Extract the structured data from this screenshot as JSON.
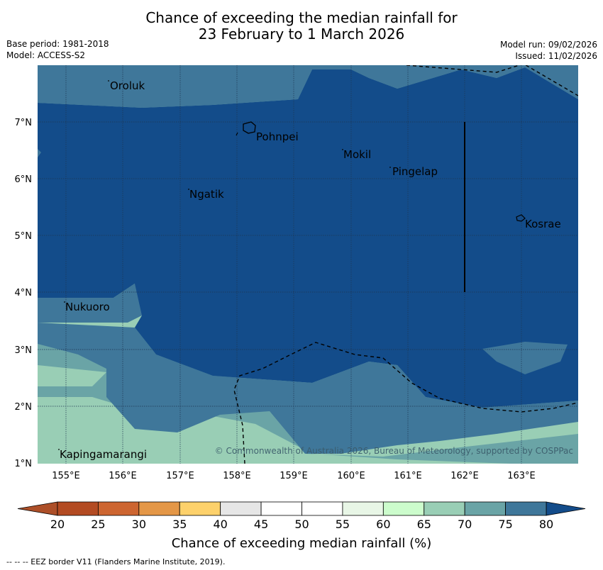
{
  "title": {
    "line1": "Chance of exceeding the median rainfall for",
    "line2": "23 February to 1 March 2026"
  },
  "meta_left": {
    "base_period": "Base period: 1981-2018",
    "model": "Model: ACCESS-S2"
  },
  "meta_right": {
    "model_run": "Model run: 09/02/2026",
    "issued": "Issued: 11/02/2026"
  },
  "places": {
    "oroluk": "Oroluk",
    "pohnpei": "Pohnpei",
    "mokil": "Mokil",
    "pingelap": "Pingelap",
    "ngatik": "Ngatik",
    "kosrae": "Kosrae",
    "nukuoro": "Nukuoro",
    "kapingamarangi": "Kapingamarangi"
  },
  "lat_labels": [
    "7°N",
    "6°N",
    "5°N",
    "4°N",
    "3°N",
    "2°N",
    "1°N"
  ],
  "lon_labels": [
    "155°E",
    "156°E",
    "157°E",
    "158°E",
    "159°E",
    "160°E",
    "161°E",
    "162°E",
    "163°E"
  ],
  "copyright": "© Commonwealth of Australia 2026, Bureau of Meteorology, supported by COSPPac",
  "colorbar": {
    "ticks": [
      "20",
      "25",
      "30",
      "35",
      "40",
      "45",
      "50",
      "55",
      "60",
      "65",
      "70",
      "75",
      "80"
    ],
    "colors": [
      "#ad4f28",
      "#b34b22",
      "#cd6530",
      "#e49747",
      "#fdd16b",
      "#e6e6e6",
      "#ffffff",
      "#ffffff",
      "#e8f6e6",
      "#ccfccc",
      "#99ceb5",
      "#6aa4a6",
      "#3f779a",
      "#134c8a"
    ],
    "title": "Chance of exceeding median rainfall (%)"
  },
  "legend_note": "--  --  -- EEZ border V11 (Flanders Marine Institute, 2019).",
  "palette": {
    "dark_blue": "#134c8a",
    "mid_blue": "#3f779a",
    "teal": "#6aa4a6",
    "light_teal": "#99ceb5",
    "pale_green": "#ccfccc"
  }
}
